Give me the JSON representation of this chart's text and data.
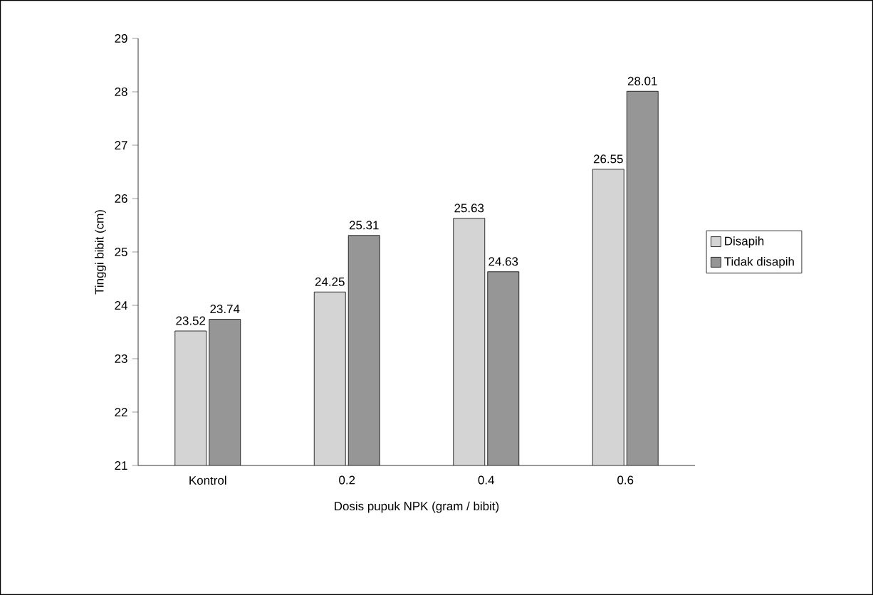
{
  "chart_data": {
    "type": "bar",
    "xlabel": "Dosis pupuk NPK (gram / bibit)",
    "ylabel": "Tinggi bibit (cm)",
    "categories": [
      "Kontrol",
      "0.2",
      "0.4",
      "0.6"
    ],
    "series": [
      {
        "name": "Disapih",
        "color": "#d4d4d4",
        "values": [
          23.52,
          24.25,
          25.63,
          26.55
        ]
      },
      {
        "name": "Tidak disapih",
        "color": "#969696",
        "values": [
          23.74,
          25.31,
          24.63,
          28.01
        ]
      }
    ],
    "ylim": [
      21,
      29
    ],
    "yticks": [
      21,
      22,
      23,
      24,
      25,
      26,
      27,
      28,
      29
    ],
    "data_labels": true,
    "grid": false,
    "legend": "right"
  }
}
